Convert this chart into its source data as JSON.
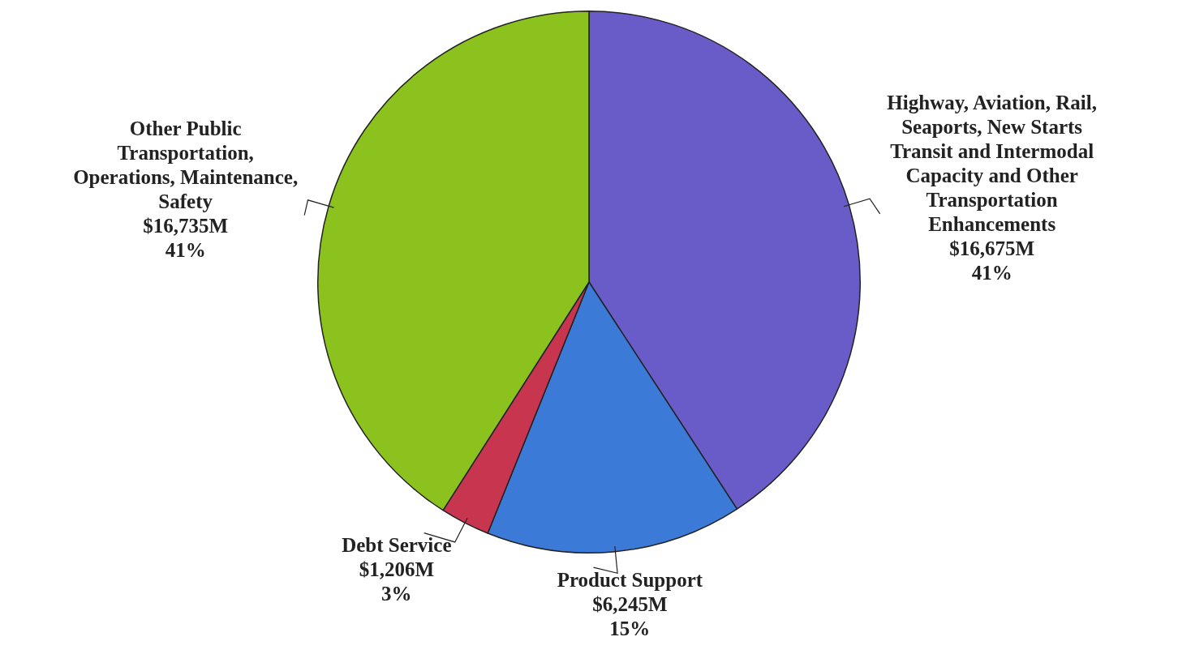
{
  "chart_data": {
    "type": "pie",
    "categories": [
      "Highway, Aviation, Rail, Seaports, New Starts Transit and Intermodal Capacity and Other Transportation Enhancements",
      "Product Support",
      "Debt Service",
      "Other Public Transportation, Operations, Maintenance, Safety"
    ],
    "values": [
      16675,
      6245,
      1206,
      16735
    ],
    "colors": [
      "#6a5cc8",
      "#3c7ad8",
      "#c8354f",
      "#8cc21e"
    ],
    "value_labels": [
      "$16,675M",
      "$6,245M",
      "$1,206M",
      "$16,735M"
    ],
    "annotations": [
      "41%",
      "15%",
      "3%",
      "41%"
    ],
    "legend": false
  }
}
